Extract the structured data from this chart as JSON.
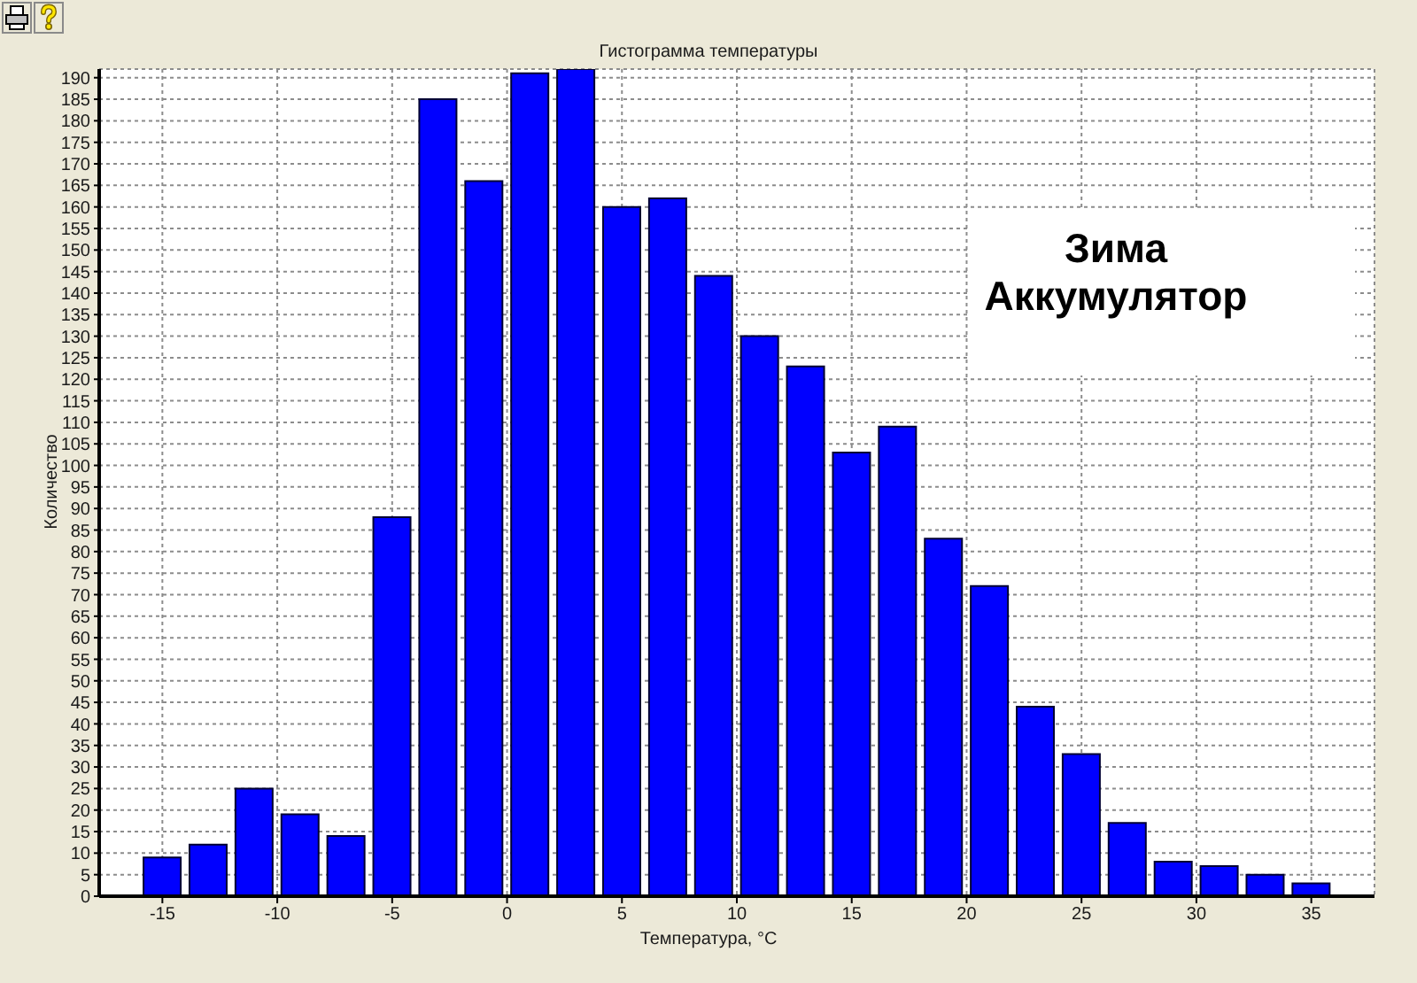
{
  "chart_data": {
    "type": "histogram",
    "title": "Гистограмма температуры",
    "xlabel": "Температура, °C",
    "ylabel": "Количество",
    "annotations": [
      "Зима",
      "Аккумулятор"
    ],
    "bins": [
      -16,
      -14,
      -12,
      -10,
      -8,
      -6,
      -4,
      -2,
      0,
      2,
      4,
      6,
      8,
      10,
      12,
      14,
      16,
      18,
      20,
      22,
      24,
      26,
      28,
      30,
      32,
      34,
      36
    ],
    "values": [
      9,
      12,
      25,
      19,
      14,
      88,
      185,
      166,
      191,
      192,
      160,
      162,
      144,
      130,
      123,
      103,
      109,
      83,
      72,
      44,
      33,
      17,
      8,
      7,
      5,
      3
    ],
    "color": "#0000ff",
    "xlim": [
      -17.75,
      37.75
    ],
    "xticks": [
      -15,
      -10,
      -5,
      0,
      5,
      10,
      15,
      20,
      25,
      30,
      35
    ],
    "ylim": [
      0,
      192
    ],
    "yticks": [
      0,
      5,
      10,
      15,
      20,
      25,
      30,
      35,
      40,
      45,
      50,
      55,
      60,
      65,
      70,
      75,
      80,
      85,
      90,
      95,
      100,
      105,
      110,
      115,
      120,
      125,
      130,
      135,
      140,
      145,
      150,
      155,
      160,
      165,
      170,
      175,
      180,
      185,
      190
    ],
    "grid": true
  }
}
